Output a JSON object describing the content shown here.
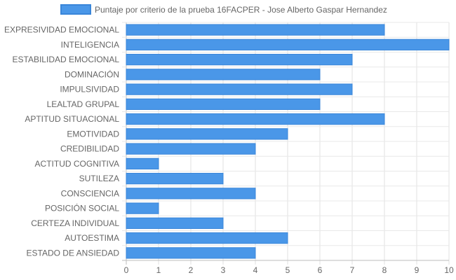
{
  "chart_data": {
    "type": "bar",
    "orientation": "horizontal",
    "categories": [
      "EXPRESIVIDAD EMOCIONAL",
      "INTELIGENCIA",
      "ESTABILIDAD EMOCIONAL",
      "DOMINACIÓN",
      "IMPULSIVIDAD",
      "LEALTAD GRUPAL",
      "APTITUD SITUACIONAL",
      "EMOTIVIDAD",
      "CREDIBILIDAD",
      "ACTITUD COGNITIVA",
      "SUTILEZA",
      "CONSCIENCIA",
      "POSICIÓN SOCIAL",
      "CERTEZA INDIVIDUAL",
      "AUTOESTIMA",
      "ESTADO DE ANSIEDAD"
    ],
    "series": [
      {
        "name": "Puntaje por criterio de la prueba 16FACPER - Jose Alberto Gaspar Hernandez",
        "values": [
          8,
          10,
          7,
          6,
          7,
          6,
          8,
          5,
          4,
          1,
          3,
          4,
          1,
          3,
          5,
          4
        ],
        "color": "#4a97e8",
        "border_color": "#3a86d9"
      }
    ],
    "x_ticks": [
      "0",
      "1",
      "2",
      "3",
      "4",
      "5",
      "6",
      "7",
      "8",
      "9",
      "10"
    ],
    "xlim": [
      0,
      10
    ],
    "grid": true,
    "legend_position": "top",
    "title": "",
    "xlabel": "",
    "ylabel": ""
  }
}
